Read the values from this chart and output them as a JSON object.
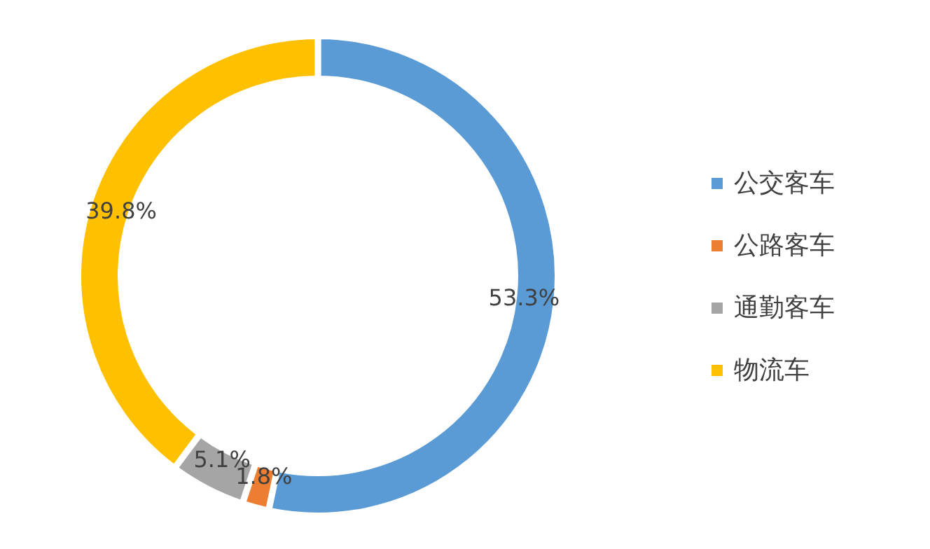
{
  "chart_data": {
    "type": "donut",
    "categories": [
      "公交客车",
      "公路客车",
      "通勤客车",
      "物流车"
    ],
    "values": [
      53.3,
      1.8,
      5.1,
      39.8
    ],
    "colors": [
      "#5b9bd5",
      "#ed7d31",
      "#a5a5a5",
      "#ffc000"
    ],
    "value_labels": [
      "53.3%",
      "1.8%",
      "5.1%",
      "39.8%"
    ],
    "legend": "right"
  }
}
